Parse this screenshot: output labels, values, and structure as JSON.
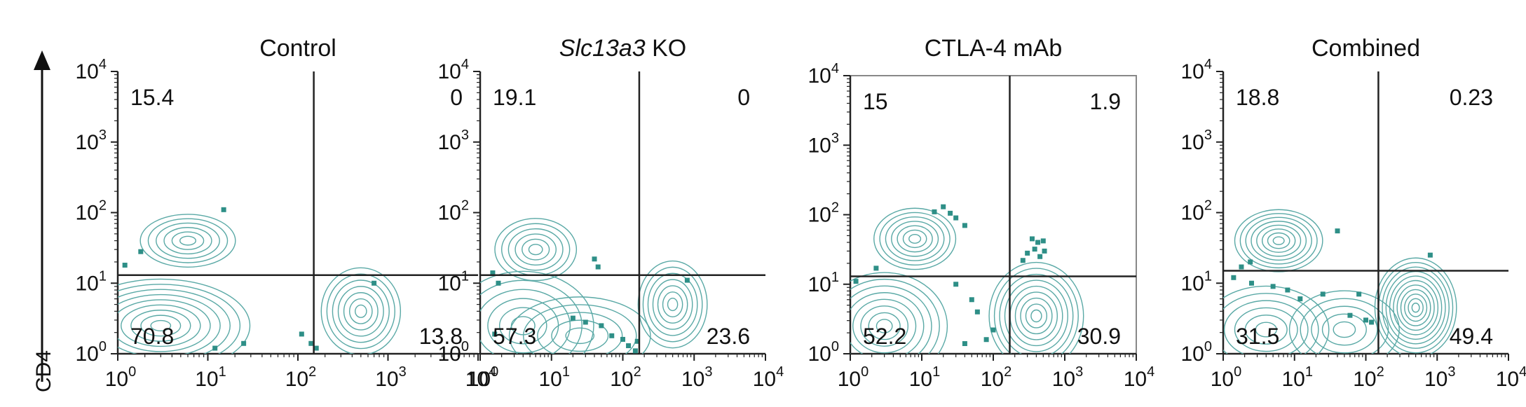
{
  "figure": {
    "y_axis_label": "CD4"
  },
  "colors": {
    "contour": "#5aa9a6",
    "dot": "#2e8f87",
    "gate": "#222222",
    "axis": "#222222"
  },
  "chart_data": [
    {
      "type": "scatter",
      "title": "Control",
      "title_italic": "",
      "title_rest": "",
      "x_scale": "log",
      "y_scale": "log",
      "xlim": [
        1,
        10000
      ],
      "ylim": [
        1,
        10000
      ],
      "x_tick_labels": [
        "10",
        "10",
        "10",
        "10",
        "10"
      ],
      "x_tick_exponents": [
        "0",
        "1",
        "2",
        "3",
        "4"
      ],
      "y_tick_labels": [
        "10",
        "10",
        "10",
        "10",
        "10"
      ],
      "y_tick_exponents": [
        "0",
        "1",
        "2",
        "3",
        "4"
      ],
      "gate": {
        "x": 150,
        "y": 13
      },
      "quadrants": {
        "upper_left": "15.4",
        "upper_right": "0",
        "lower_left": "70.8",
        "lower_right": "13.8"
      },
      "populations": [
        {
          "x": 6,
          "y": 40,
          "sx": 0.24,
          "sy": 0.17,
          "levels": 6
        },
        {
          "x": 3,
          "y": 2.5,
          "sx": 0.45,
          "sy": 0.3,
          "levels": 9
        },
        {
          "x": 500,
          "y": 4,
          "sx": 0.2,
          "sy": 0.28,
          "levels": 7
        }
      ],
      "dots": [
        [
          15,
          110
        ],
        [
          1.8,
          28
        ],
        [
          25,
          1.4
        ],
        [
          12,
          1.2
        ],
        [
          110,
          1.9
        ],
        [
          140,
          1.4
        ],
        [
          160,
          1.2
        ],
        [
          700,
          10
        ],
        [
          1.2,
          18
        ]
      ]
    },
    {
      "type": "scatter",
      "title": "",
      "title_italic": "Slc13a3",
      "title_rest": " KO",
      "x_scale": "log",
      "y_scale": "log",
      "xlim": [
        1,
        10000
      ],
      "ylim": [
        1,
        10000
      ],
      "x_tick_labels": [
        "10",
        "10",
        "10",
        "10",
        "10"
      ],
      "x_tick_exponents": [
        "0",
        "1",
        "2",
        "3",
        "4"
      ],
      "y_tick_labels": [
        "10",
        "10",
        "10",
        "10",
        "10"
      ],
      "y_tick_exponents": [
        "0",
        "1",
        "2",
        "3",
        "4"
      ],
      "gate": {
        "x": 170,
        "y": 13
      },
      "quadrants": {
        "upper_left": "19.1",
        "upper_right": "0",
        "lower_left": "57.3",
        "lower_right": "23.6"
      },
      "populations": [
        {
          "x": 6,
          "y": 30,
          "sx": 0.26,
          "sy": 0.2,
          "levels": 6
        },
        {
          "x": 4,
          "y": 2.5,
          "sx": 0.45,
          "sy": 0.35,
          "levels": 6
        },
        {
          "x": 25,
          "y": 1.8,
          "sx": 0.45,
          "sy": 0.25,
          "levels": 5
        },
        {
          "x": 500,
          "y": 5,
          "sx": 0.22,
          "sy": 0.28,
          "levels": 7
        }
      ],
      "dots": [
        [
          40,
          22
        ],
        [
          45,
          17
        ],
        [
          1.5,
          14
        ],
        [
          1.8,
          10
        ],
        [
          20,
          3.2
        ],
        [
          30,
          2.8
        ],
        [
          50,
          2.5
        ],
        [
          70,
          1.8
        ],
        [
          100,
          1.6
        ],
        [
          120,
          1.3
        ],
        [
          150,
          1.1
        ],
        [
          160,
          1.5
        ],
        [
          1.6,
          1.9
        ],
        [
          800,
          11
        ]
      ]
    },
    {
      "type": "scatter",
      "title": "CTLA-4 mAb",
      "title_italic": "",
      "title_rest": "",
      "x_scale": "log",
      "y_scale": "log",
      "xlim": [
        1,
        10000
      ],
      "ylim": [
        1,
        10000
      ],
      "x_tick_labels": [
        "10",
        "10",
        "10",
        "10",
        "10"
      ],
      "x_tick_exponents": [
        "0",
        "1",
        "2",
        "3",
        "4"
      ],
      "y_tick_labels": [
        "10",
        "10",
        "10",
        "10",
        "10"
      ],
      "y_tick_exponents": [
        "0",
        "1",
        "2",
        "3",
        "4"
      ],
      "gate": {
        "x": 170,
        "y": 13
      },
      "quadrants": {
        "upper_left": "15",
        "upper_right": "1.9",
        "lower_left": "52.2",
        "lower_right": "30.9"
      },
      "populations": [
        {
          "x": 8,
          "y": 45,
          "sx": 0.26,
          "sy": 0.2,
          "levels": 7
        },
        {
          "x": 3,
          "y": 2.5,
          "sx": 0.4,
          "sy": 0.35,
          "levels": 8
        },
        {
          "x": 400,
          "y": 3.5,
          "sx": 0.3,
          "sy": 0.35,
          "levels": 9
        }
      ],
      "dots": [
        [
          20,
          130
        ],
        [
          25,
          105
        ],
        [
          30,
          90
        ],
        [
          40,
          70
        ],
        [
          15,
          110
        ],
        [
          350,
          45
        ],
        [
          420,
          40
        ],
        [
          500,
          42
        ],
        [
          380,
          32
        ],
        [
          300,
          28
        ],
        [
          260,
          22
        ],
        [
          450,
          25
        ],
        [
          520,
          30
        ],
        [
          50,
          6
        ],
        [
          60,
          4
        ],
        [
          80,
          1.6
        ],
        [
          100,
          2.2
        ],
        [
          40,
          1.4
        ],
        [
          2.3,
          17
        ],
        [
          1.2,
          11
        ],
        [
          30,
          10
        ]
      ]
    },
    {
      "type": "scatter",
      "title": "Combined",
      "title_italic": "",
      "title_rest": "",
      "x_scale": "log",
      "y_scale": "log",
      "xlim": [
        1,
        10000
      ],
      "ylim": [
        1,
        10000
      ],
      "x_tick_labels": [
        "10",
        "10",
        "10",
        "10",
        "10"
      ],
      "x_tick_exponents": [
        "0",
        "1",
        "2",
        "3",
        "4"
      ],
      "y_tick_labels": [
        "10",
        "10",
        "10",
        "10",
        "10"
      ],
      "y_tick_exponents": [
        "0",
        "1",
        "2",
        "3",
        "4"
      ],
      "gate": {
        "x": 150,
        "y": 15
      },
      "quadrants": {
        "upper_left": "18.8",
        "upper_right": "0.23",
        "lower_left": "31.5",
        "lower_right": "49.4"
      },
      "populations": [
        {
          "x": 6,
          "y": 40,
          "sx": 0.28,
          "sy": 0.2,
          "levels": 8
        },
        {
          "x": 4,
          "y": 2.2,
          "sx": 0.4,
          "sy": 0.28,
          "levels": 6
        },
        {
          "x": 50,
          "y": 2.2,
          "sx": 0.35,
          "sy": 0.25,
          "levels": 5
        },
        {
          "x": 500,
          "y": 4.5,
          "sx": 0.26,
          "sy": 0.32,
          "levels": 11
        }
      ],
      "dots": [
        [
          40,
          55
        ],
        [
          1.4,
          12
        ],
        [
          2.5,
          10
        ],
        [
          5,
          9
        ],
        [
          8,
          8
        ],
        [
          12,
          6
        ],
        [
          25,
          7
        ],
        [
          60,
          3.5
        ],
        [
          80,
          7
        ],
        [
          100,
          3
        ],
        [
          120,
          2.8
        ],
        [
          800,
          25
        ],
        [
          1.8,
          17
        ],
        [
          2.4,
          20
        ]
      ]
    }
  ]
}
